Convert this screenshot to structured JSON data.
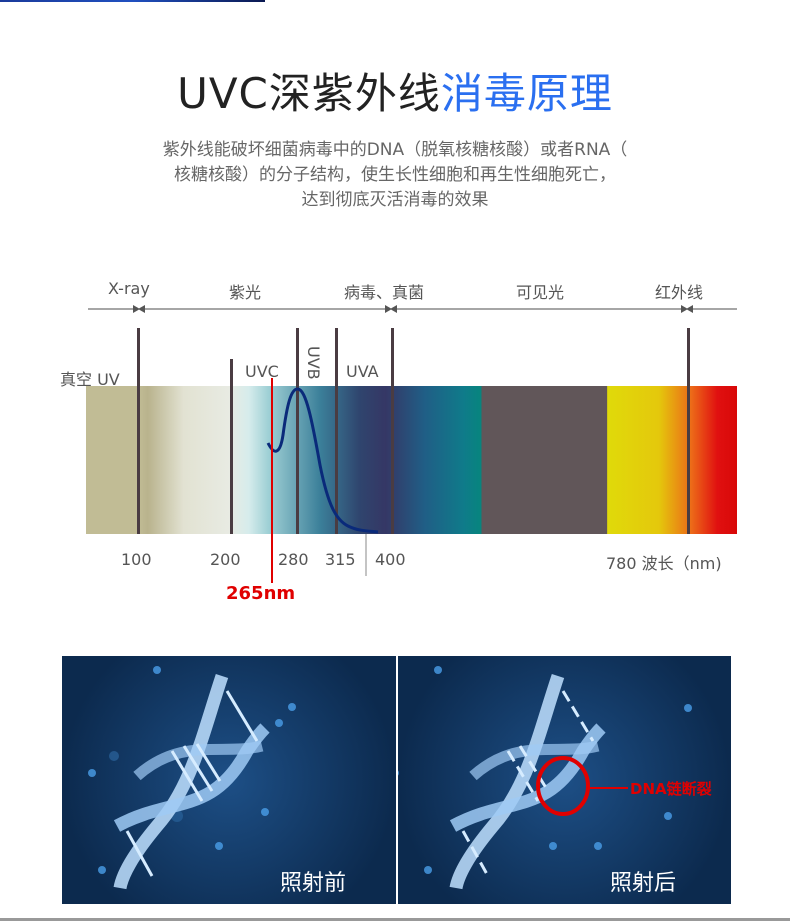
{
  "title": {
    "main": "UVC深紫外线",
    "highlight": "消毒原理"
  },
  "description": [
    "紫外线能破坏细菌病毒中的DNA（脱氧核糖核酸）或者RNA（",
    "核糖核酸）的分子结构，使生长性细胞和再生性细胞死亡，",
    "达到彻底灭活消毒的效果"
  ],
  "spectrum": {
    "regions": [
      "X-ray",
      "紫光",
      "病毒、真菌",
      "可见光",
      "红外线"
    ],
    "band_labels": {
      "vacuum_uv": "真空 UV",
      "uvc": "UVC",
      "uvb": "UVB",
      "uva": "UVA"
    },
    "ticks": [
      "100",
      "200",
      "280",
      "315",
      "400",
      "780 波长（nm)"
    ],
    "marker": "265nm",
    "marker_color": "#e00000",
    "curve_color": "#0a2a7a"
  },
  "dna": {
    "before": "照射前",
    "after": "照射后",
    "annotation": "DNA链断裂",
    "annotation_color": "#e00000"
  }
}
